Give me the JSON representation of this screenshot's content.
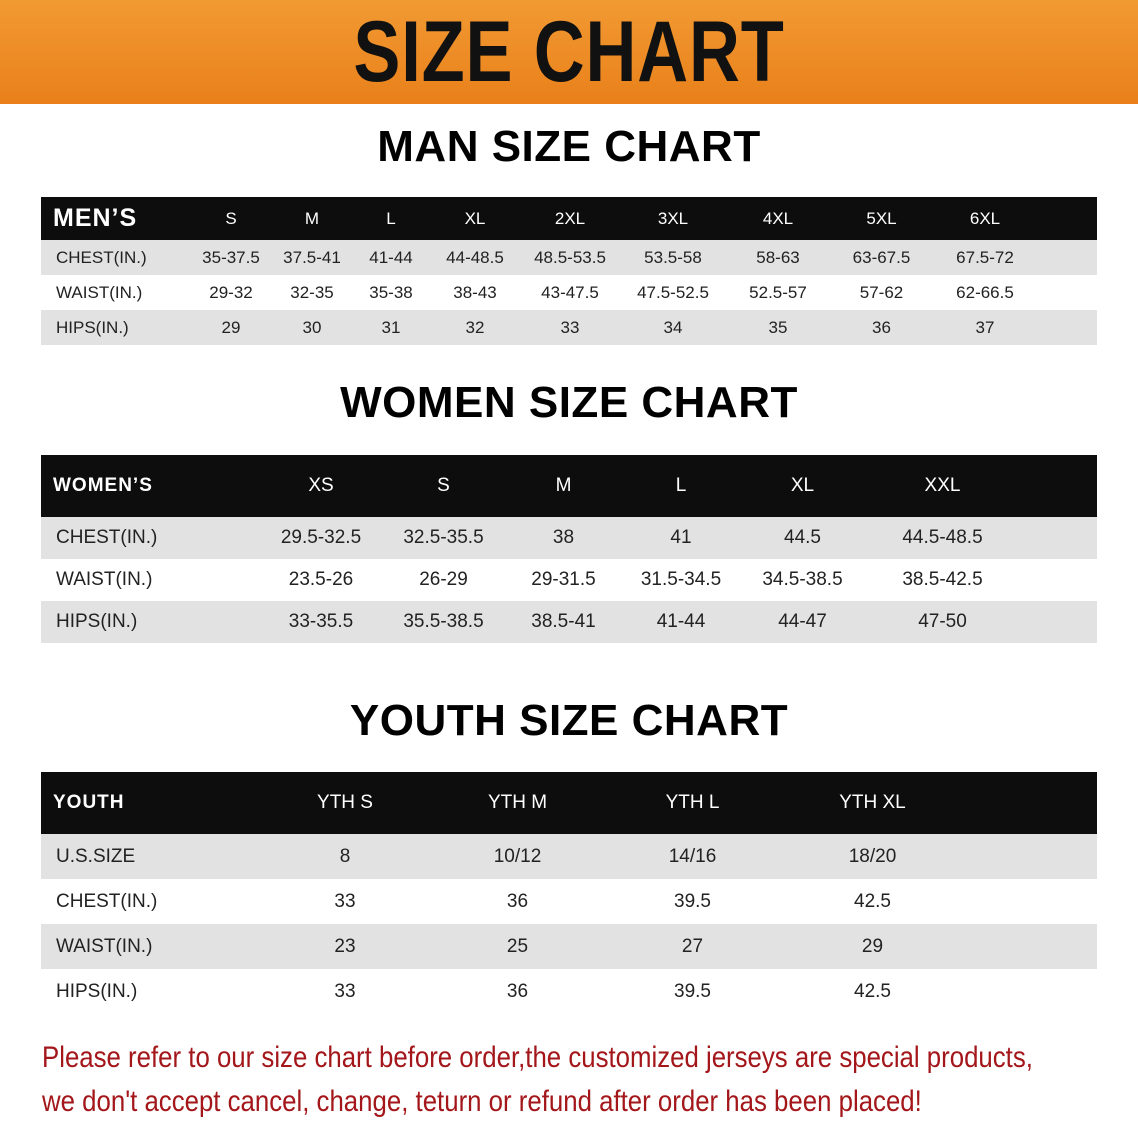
{
  "banner_title": "SIZE CHART",
  "men": {
    "title": "MAN SIZE CHART",
    "header": [
      "MEN’S",
      "S",
      "M",
      "L",
      "XL",
      "2XL",
      "3XL",
      "4XL",
      "5XL",
      "6XL"
    ],
    "rows": [
      [
        "CHEST(IN.)",
        "35-37.5",
        "37.5-41",
        "41-44",
        "44-48.5",
        "48.5-53.5",
        "53.5-58",
        "58-63",
        "63-67.5",
        "67.5-72"
      ],
      [
        "WAIST(IN.)",
        "29-32",
        "32-35",
        "35-38",
        "38-43",
        "43-47.5",
        "47.5-52.5",
        "52.5-57",
        "57-62",
        "62-66.5"
      ],
      [
        "HIPS(IN.)",
        "29",
        "30",
        "31",
        "32",
        "33",
        "34",
        "35",
        "36",
        "37"
      ]
    ]
  },
  "women": {
    "title": "WOMEN SIZE CHART",
    "header": [
      "WOMEN’S",
      "XS",
      "S",
      "M",
      "L",
      "XL",
      "XXL"
    ],
    "rows": [
      [
        "CHEST(IN.)",
        "29.5-32.5",
        "32.5-35.5",
        "38",
        "41",
        "44.5",
        "44.5-48.5"
      ],
      [
        "WAIST(IN.)",
        "23.5-26",
        "26-29",
        "29-31.5",
        "31.5-34.5",
        "34.5-38.5",
        "38.5-42.5"
      ],
      [
        "HIPS(IN.)",
        "33-35.5",
        "35.5-38.5",
        "38.5-41",
        "41-44",
        "44-47",
        "47-50"
      ]
    ]
  },
  "youth": {
    "title": "YOUTH SIZE CHART",
    "header": [
      "YOUTH",
      "YTH S",
      "YTH M",
      "YTH L",
      "YTH XL"
    ],
    "rows": [
      [
        "U.S.SIZE",
        "8",
        "10/12",
        "14/16",
        "18/20"
      ],
      [
        "CHEST(IN.)",
        "33",
        "36",
        "39.5",
        "42.5"
      ],
      [
        "WAIST(IN.)",
        "23",
        "25",
        "27",
        "29"
      ],
      [
        "HIPS(IN.)",
        "33",
        "36",
        "39.5",
        "42.5"
      ]
    ]
  },
  "notice": {
    "line1": "Please refer to our size chart before order,the customized jerseys are special products,",
    "line2": "we don't accept cancel, change, teturn or refund after order has been placed!"
  },
  "colors": {
    "banner": "#ec8a22",
    "header_row": "#0d0d0d",
    "stripe": "#e2e2e2",
    "notice": "#a3161a"
  }
}
